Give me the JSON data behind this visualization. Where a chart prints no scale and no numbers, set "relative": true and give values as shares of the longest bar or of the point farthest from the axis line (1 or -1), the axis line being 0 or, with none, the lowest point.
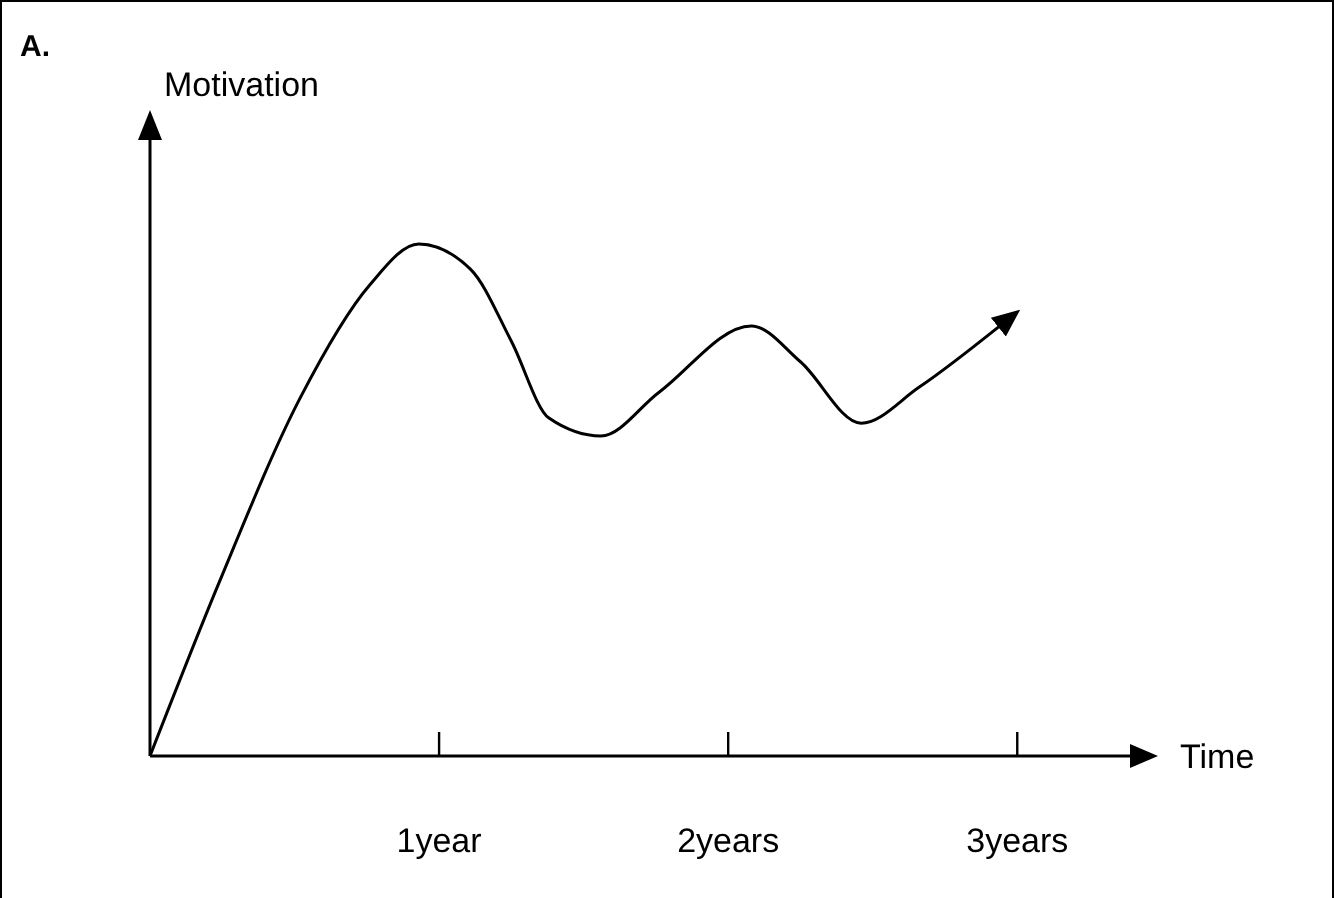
{
  "chart_data": {
    "type": "line",
    "relative": true,
    "xlabel": "Time",
    "ylabel": "Motivation",
    "annotations": [
      "A."
    ],
    "x": [
      0,
      0.24,
      0.52,
      0.76,
      0.93,
      1.11,
      1.25,
      1.38,
      1.56,
      1.76,
      2.08,
      2.25,
      2.46,
      2.66,
      2.94
    ],
    "values": [
      0,
      0.34,
      0.7,
      0.92,
      1,
      0.95,
      0.81,
      0.66,
      0.625,
      0.71,
      0.84,
      0.77,
      0.65,
      0.72,
      0.84
    ],
    "color": "#000000",
    "xlim": [
      0,
      3.39
    ],
    "xticks": [
      {
        "value": 1,
        "label": "1year"
      },
      {
        "value": 2,
        "label": "2years"
      },
      {
        "value": 3,
        "label": "3years"
      }
    ],
    "marker": "none",
    "line_style": "solid"
  }
}
